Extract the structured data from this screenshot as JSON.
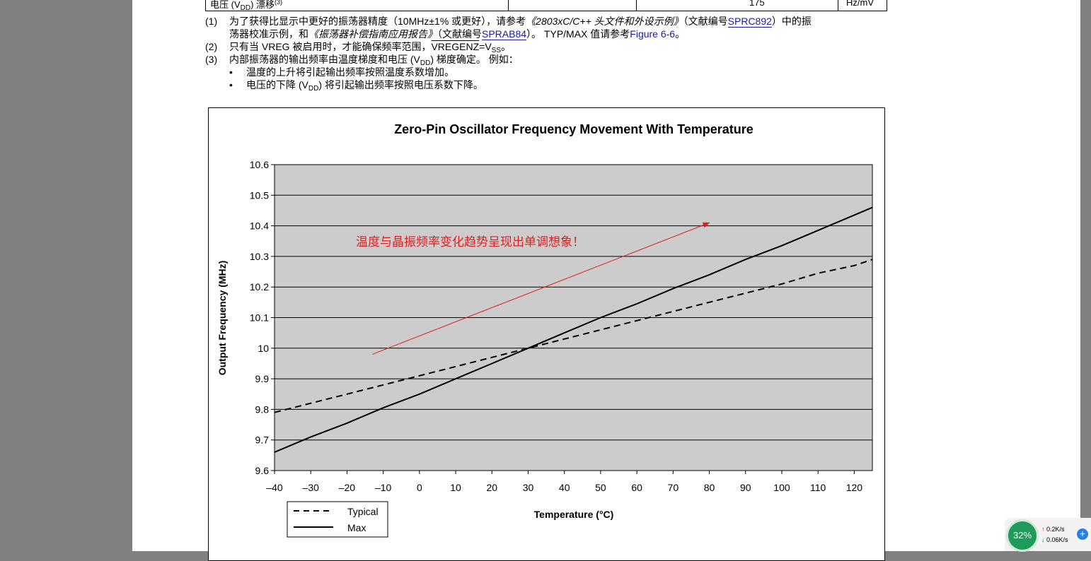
{
  "table_row": {
    "label_pre": "电压 (V",
    "label_sub": "DD",
    "label_post": ") 漂移",
    "label_sup": "(3)",
    "value": "175",
    "unit": "Hz/mV"
  },
  "notes": {
    "n1": {
      "num": "(1)",
      "a": "为了获得比显示中更好的振荡器精度（10MHz±1% 或更好），请参考",
      "b": "《2803xC/C++ 头文件和外设示例》",
      "c": "（文献编号",
      "d": "SPRC892",
      "e": "）中的振",
      "f": "荡器校准示例，和",
      "g": "《振荡器补偿指南应用报告》",
      "h": "（文献编号",
      "i": "SPRAB84",
      "j": "）。 TYP/MAX 值请参考",
      "k": "Figure 6-6",
      "l": "。"
    },
    "n2": {
      "num": "(2)",
      "a": "只有当 VREG 被启用时，才能确保频率范围，",
      "b": "VREGENZ",
      "c": "=V",
      "d": "SS",
      "e": "。"
    },
    "n3": {
      "num": "(3)",
      "a": "内部振荡器的输出频率由温度梯度和电压 (V",
      "b": "DD",
      "c": ") 梯度确定。 例如：",
      "bullet": "•",
      "b1": "温度的上升将引起输出频率按照温度系数增加。",
      "b2a": "电压的下降 (V",
      "b2b": "DD",
      "b2c": ") 将引起输出频率按照电压系数下降。"
    }
  },
  "chart_data": {
    "type": "line",
    "title": "Zero-Pin Oscillator Frequency Movement With Temperature",
    "xlabel": "Temperature (°C)",
    "ylabel": "Output Frequency (MHz)",
    "xlim": [
      -40,
      125
    ],
    "ylim": [
      9.6,
      10.6
    ],
    "xticks": [
      -40,
      -30,
      -20,
      -10,
      0,
      10,
      20,
      30,
      40,
      50,
      60,
      70,
      80,
      90,
      100,
      110,
      120
    ],
    "xtick_labels": [
      "–40",
      "–30",
      "–20",
      "–10",
      "0",
      "10",
      "20",
      "30",
      "40",
      "50",
      "60",
      "70",
      "80",
      "90",
      "100",
      "110",
      "120"
    ],
    "yticks": [
      9.6,
      9.7,
      9.8,
      9.9,
      10,
      10.1,
      10.2,
      10.3,
      10.4,
      10.5,
      10.6
    ],
    "ytick_labels": [
      "9.6",
      "9.7",
      "9.8",
      "9.9",
      "10",
      "10.1",
      "10.2",
      "10.3",
      "10.4",
      "10.5",
      "10.6"
    ],
    "grid": "horizontal",
    "plot_background": "#cccccc",
    "legend_position": "bottom-left, below plot",
    "series": [
      {
        "name": "Typical",
        "style": "dashed",
        "color": "#000000",
        "x": [
          -40,
          -30,
          -20,
          -10,
          0,
          10,
          20,
          30,
          40,
          50,
          60,
          70,
          80,
          90,
          100,
          110,
          120,
          125
        ],
        "y": [
          9.79,
          9.82,
          9.85,
          9.88,
          9.91,
          9.94,
          9.97,
          10.0,
          10.03,
          10.06,
          10.09,
          10.12,
          10.15,
          10.18,
          10.21,
          10.245,
          10.27,
          10.29
        ]
      },
      {
        "name": "Max",
        "style": "solid",
        "color": "#000000",
        "x": [
          -40,
          -30,
          -20,
          -10,
          0,
          10,
          20,
          30,
          40,
          50,
          60,
          70,
          80,
          90,
          100,
          110,
          120,
          125
        ],
        "y": [
          9.66,
          9.71,
          9.755,
          9.805,
          9.85,
          9.9,
          9.95,
          10.0,
          10.05,
          10.1,
          10.145,
          10.195,
          10.24,
          10.29,
          10.335,
          10.385,
          10.435,
          10.46
        ]
      }
    ],
    "annotation": {
      "text": "温度与晶振频率变化趋势呈现出单调想象！",
      "color": "#e02020",
      "arrow_from": [
        -13,
        9.98
      ],
      "arrow_to": [
        80,
        10.41
      ]
    }
  },
  "tray": {
    "cpu": "32%",
    "up": "0.2K/s",
    "down": "0.06K/s",
    "plus": "+"
  }
}
